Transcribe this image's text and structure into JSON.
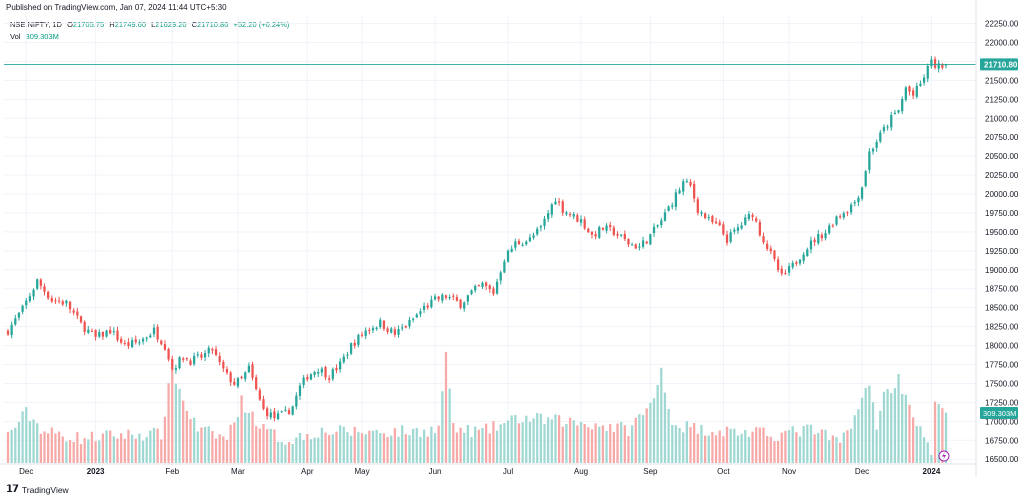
{
  "published": "Published on TradingView.com, Jan 07, 2024 11:44 UTC+5:30",
  "brand": "TradingView",
  "legend": {
    "symbol": "NSE:NIFTY, 1D",
    "open_label": "O",
    "open": "21705.75",
    "high_label": "H",
    "high": "21749.60",
    "low_label": "L",
    "low": "21629.20",
    "close_label": "C",
    "close": "21710.80",
    "change": "+52.20 (+0.24%)",
    "vol_label": "Vol",
    "vol": "309.303M"
  },
  "colors": {
    "up": "#26a69a",
    "down": "#ef5350",
    "vol_up": "#9fd8d2",
    "vol_down": "#f7a9a7",
    "grid": "#f0f3fa",
    "price_line": "#26a69a"
  },
  "chart_data": {
    "type": "candlestick",
    "symbol": "NSE:NIFTY",
    "interval": "1D",
    "price_range": [
      16450,
      22350
    ],
    "last_price": 21710.8,
    "last_price_label": "21710.80",
    "last_volume_label": "309.303M",
    "y_ticks": [
      "16500.00",
      "16750.00",
      "17000.00",
      "17250.00",
      "17500.00",
      "17750.00",
      "18000.00",
      "18250.00",
      "18500.00",
      "18750.00",
      "19000.00",
      "19250.00",
      "19500.00",
      "19750.00",
      "20000.00",
      "20250.00",
      "20500.00",
      "20750.00",
      "21000.00",
      "21250.00",
      "21500.00",
      "21750.00",
      "22000.00",
      "22250.00"
    ],
    "x_ticks": [
      {
        "label": "Dec",
        "index": 5,
        "bold": false
      },
      {
        "label": "2023",
        "index": 24,
        "bold": true
      },
      {
        "label": "Feb",
        "index": 45,
        "bold": false
      },
      {
        "label": "Mar",
        "index": 63,
        "bold": false
      },
      {
        "label": "Apr",
        "index": 82,
        "bold": false
      },
      {
        "label": "May",
        "index": 97,
        "bold": false
      },
      {
        "label": "Jun",
        "index": 117,
        "bold": false
      },
      {
        "label": "Jul",
        "index": 137,
        "bold": false
      },
      {
        "label": "Aug",
        "index": 157,
        "bold": false
      },
      {
        "label": "Sep",
        "index": 176,
        "bold": false
      },
      {
        "label": "Oct",
        "index": 196,
        "bold": false
      },
      {
        "label": "Nov",
        "index": 214,
        "bold": false
      },
      {
        "label": "Dec",
        "index": 234,
        "bold": false
      },
      {
        "label": "2024",
        "index": 253,
        "bold": true
      }
    ],
    "close_path": [
      [
        0,
        18200
      ],
      [
        4,
        18480
      ],
      [
        8,
        18850
      ],
      [
        12,
        18600
      ],
      [
        16,
        18560
      ],
      [
        20,
        18280
      ],
      [
        24,
        18100
      ],
      [
        28,
        18200
      ],
      [
        32,
        18000
      ],
      [
        36,
        18050
      ],
      [
        40,
        18200
      ],
      [
        43,
        18000
      ],
      [
        45,
        17700
      ],
      [
        48,
        17850
      ],
      [
        50,
        17800
      ],
      [
        53,
        17850
      ],
      [
        56,
        17950
      ],
      [
        58,
        17750
      ],
      [
        60,
        17600
      ],
      [
        62,
        17500
      ],
      [
        64,
        17550
      ],
      [
        66,
        17700
      ],
      [
        68,
        17400
      ],
      [
        70,
        17150
      ],
      [
        73,
        17050
      ],
      [
        76,
        17100
      ],
      [
        78,
        17200
      ],
      [
        80,
        17450
      ],
      [
        82,
        17600
      ],
      [
        85,
        17700
      ],
      [
        88,
        17600
      ],
      [
        91,
        17750
      ],
      [
        94,
        18000
      ],
      [
        98,
        18200
      ],
      [
        102,
        18300
      ],
      [
        106,
        18150
      ],
      [
        110,
        18300
      ],
      [
        114,
        18500
      ],
      [
        117,
        18600
      ],
      [
        120,
        18650
      ],
      [
        124,
        18550
      ],
      [
        127,
        18700
      ],
      [
        130,
        18800
      ],
      [
        133,
        18700
      ],
      [
        136,
        19150
      ],
      [
        139,
        19350
      ],
      [
        143,
        19400
      ],
      [
        146,
        19550
      ],
      [
        150,
        19950
      ],
      [
        152,
        19800
      ],
      [
        155,
        19700
      ],
      [
        157,
        19650
      ],
      [
        160,
        19450
      ],
      [
        163,
        19550
      ],
      [
        166,
        19500
      ],
      [
        170,
        19350
      ],
      [
        173,
        19300
      ],
      [
        176,
        19450
      ],
      [
        179,
        19650
      ],
      [
        182,
        19900
      ],
      [
        185,
        20150
      ],
      [
        187,
        20100
      ],
      [
        189,
        19800
      ],
      [
        192,
        19650
      ],
      [
        195,
        19550
      ],
      [
        197,
        19400
      ],
      [
        199,
        19500
      ],
      [
        202,
        19650
      ],
      [
        204,
        19750
      ],
      [
        206,
        19500
      ],
      [
        208,
        19300
      ],
      [
        210,
        19100
      ],
      [
        212,
        18900
      ],
      [
        215,
        19050
      ],
      [
        218,
        19250
      ],
      [
        221,
        19400
      ],
      [
        224,
        19500
      ],
      [
        227,
        19700
      ],
      [
        230,
        19800
      ],
      [
        232,
        19900
      ],
      [
        234,
        20100
      ],
      [
        236,
        20550
      ],
      [
        238,
        20700
      ],
      [
        240,
        20850
      ],
      [
        242,
        21000
      ],
      [
        244,
        21100
      ],
      [
        246,
        21400
      ],
      [
        248,
        21300
      ],
      [
        250,
        21450
      ],
      [
        252,
        21650
      ],
      [
        253,
        21800
      ],
      [
        254,
        21650
      ],
      [
        256,
        21700
      ],
      [
        257,
        21710.8
      ]
    ],
    "volume_path": [
      [
        0,
        0.25
      ],
      [
        5,
        0.45
      ],
      [
        10,
        0.28
      ],
      [
        20,
        0.22
      ],
      [
        30,
        0.25
      ],
      [
        42,
        0.26
      ],
      [
        45,
        0.85
      ],
      [
        48,
        0.55
      ],
      [
        52,
        0.3
      ],
      [
        60,
        0.22
      ],
      [
        64,
        0.55
      ],
      [
        70,
        0.3
      ],
      [
        76,
        0.2
      ],
      [
        85,
        0.28
      ],
      [
        95,
        0.28
      ],
      [
        110,
        0.28
      ],
      [
        118,
        0.3
      ],
      [
        120,
        1.0
      ],
      [
        122,
        0.3
      ],
      [
        130,
        0.28
      ],
      [
        140,
        0.4
      ],
      [
        150,
        0.38
      ],
      [
        160,
        0.35
      ],
      [
        170,
        0.3
      ],
      [
        177,
        0.55
      ],
      [
        179,
        0.85
      ],
      [
        182,
        0.35
      ],
      [
        190,
        0.3
      ],
      [
        200,
        0.28
      ],
      [
        210,
        0.25
      ],
      [
        220,
        0.3
      ],
      [
        228,
        0.18
      ],
      [
        234,
        0.55
      ],
      [
        236,
        0.7
      ],
      [
        238,
        0.35
      ],
      [
        240,
        0.6
      ],
      [
        244,
        0.75
      ],
      [
        248,
        0.45
      ],
      [
        250,
        0.28
      ],
      [
        253,
        0.1
      ],
      [
        254,
        0.5
      ],
      [
        257,
        0.45
      ]
    ]
  }
}
